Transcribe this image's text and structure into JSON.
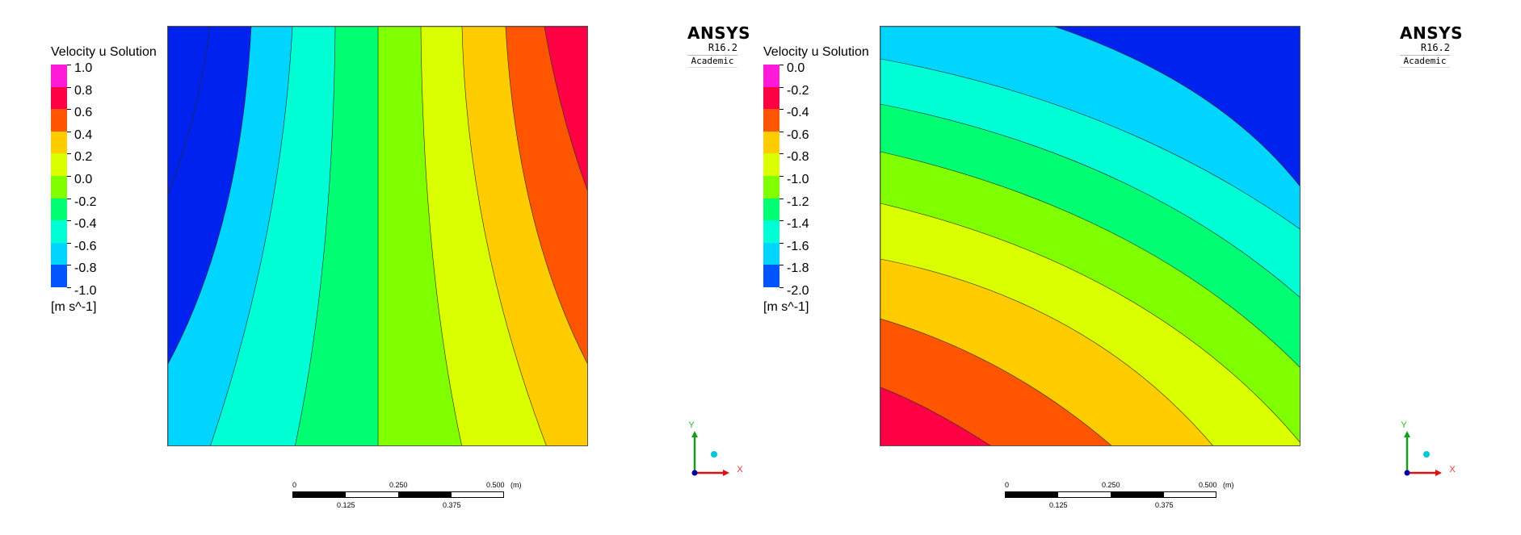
{
  "panels": [
    {
      "legend": {
        "title": "Velocity u Solution",
        "ticks": [
          "1.0",
          "0.8",
          "0.6",
          "0.4",
          "0.2",
          "0.0",
          "-0.2",
          "-0.4",
          "-0.6",
          "-0.8",
          "-1.0"
        ],
        "units": "[m s^-1]"
      },
      "logo": {
        "name": "ANSYS",
        "version": "R16.2",
        "edition": "Academic"
      },
      "scale": {
        "top": [
          "0",
          "0.250",
          "0.500"
        ],
        "unit": "(m)",
        "bottom": [
          "0.125",
          "0.375"
        ]
      },
      "axes": {
        "y": "Y",
        "x": "X"
      }
    },
    {
      "legend": {
        "title": "Velocity u Solution",
        "ticks": [
          "0.0",
          "-0.2",
          "-0.4",
          "-0.6",
          "-0.8",
          "-1.0",
          "-1.2",
          "-1.4",
          "-1.6",
          "-1.8",
          "-2.0"
        ],
        "units": "[m s^-1]"
      },
      "logo": {
        "name": "ANSYS",
        "version": "R16.2",
        "edition": "Academic"
      },
      "scale": {
        "top": [
          "0",
          "0.250",
          "0.500"
        ],
        "unit": "(m)",
        "bottom": [
          "0.125",
          "0.375"
        ]
      },
      "axes": {
        "y": "Y",
        "x": "X"
      }
    }
  ],
  "colormap": [
    "#ff1ad9",
    "#ff0044",
    "#ff5500",
    "#ffcc00",
    "#d9ff00",
    "#80ff00",
    "#00ff73",
    "#00ffd5",
    "#00d5ff",
    "#0055ff"
  ],
  "contour_fill_colors": [
    "#0022ee",
    "#00d5ff",
    "#00ffd5",
    "#00ff73",
    "#80ff00",
    "#d9ff00",
    "#ffcc00",
    "#ff5500",
    "#ff0044"
  ]
}
